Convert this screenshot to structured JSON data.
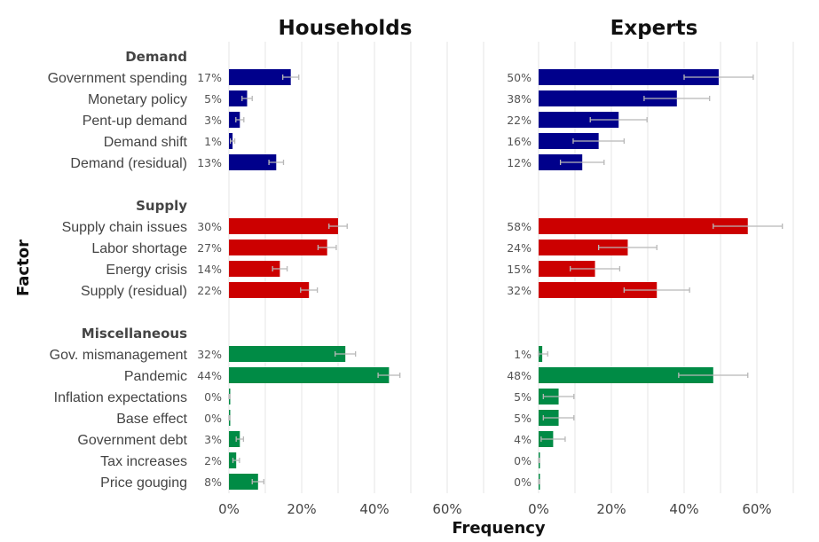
{
  "chart_data": {
    "type": "bar",
    "orientation": "horizontal",
    "xlabel": "Frequency",
    "ylabel": "Factor",
    "xlim": [
      0,
      0.7
    ],
    "xticks": [
      0,
      0.2,
      0.4,
      0.6
    ],
    "xtick_labels": [
      "0%",
      "20%",
      "40%",
      "60%"
    ],
    "grid": true,
    "colors": {
      "Demand": "#00008b",
      "Supply": "#cc0000",
      "Miscellaneous": "#008b45"
    },
    "groups": [
      {
        "name": "Demand",
        "factors": [
          "Government spending",
          "Monetary policy",
          "Pent-up demand",
          "Demand shift",
          "Demand (residual)"
        ]
      },
      {
        "name": "Supply",
        "factors": [
          "Supply chain issues",
          "Labor shortage",
          "Energy crisis",
          "Supply (residual)"
        ]
      },
      {
        "name": "Miscellaneous",
        "factors": [
          "Gov. mismanagement",
          "Pandemic",
          "Inflation expectations",
          "Base effect",
          "Government debt",
          "Tax increases",
          "Price gouging"
        ]
      }
    ],
    "panels": [
      {
        "title": "Households",
        "values": [
          0.17,
          0.05,
          0.03,
          0.01,
          0.13,
          0.3,
          0.27,
          0.14,
          0.22,
          0.32,
          0.44,
          0.0,
          0.0,
          0.03,
          0.02,
          0.08
        ],
        "labels": [
          "17%",
          "5%",
          "3%",
          "1%",
          "13%",
          "30%",
          "27%",
          "14%",
          "22%",
          "32%",
          "44%",
          "0%",
          "0%",
          "3%",
          "2%",
          "8%"
        ],
        "errors": [
          0.022,
          0.014,
          0.011,
          0.006,
          0.02,
          0.025,
          0.025,
          0.02,
          0.023,
          0.028,
          0.03,
          0.003,
          0.003,
          0.01,
          0.009,
          0.016
        ]
      },
      {
        "title": "Experts",
        "values": [
          0.495,
          0.38,
          0.22,
          0.165,
          0.12,
          0.575,
          0.245,
          0.155,
          0.325,
          0.01,
          0.48,
          0.055,
          0.055,
          0.04,
          0.0,
          0.0
        ],
        "labels": [
          "50%",
          "38%",
          "22%",
          "16%",
          "12%",
          "58%",
          "24%",
          "15%",
          "32%",
          "1%",
          "48%",
          "5%",
          "5%",
          "4%",
          "0%",
          "0%"
        ],
        "errors": [
          0.095,
          0.09,
          0.078,
          0.07,
          0.06,
          0.095,
          0.08,
          0.068,
          0.09,
          0.015,
          0.095,
          0.042,
          0.042,
          0.033,
          0.003,
          0.003
        ]
      }
    ]
  }
}
